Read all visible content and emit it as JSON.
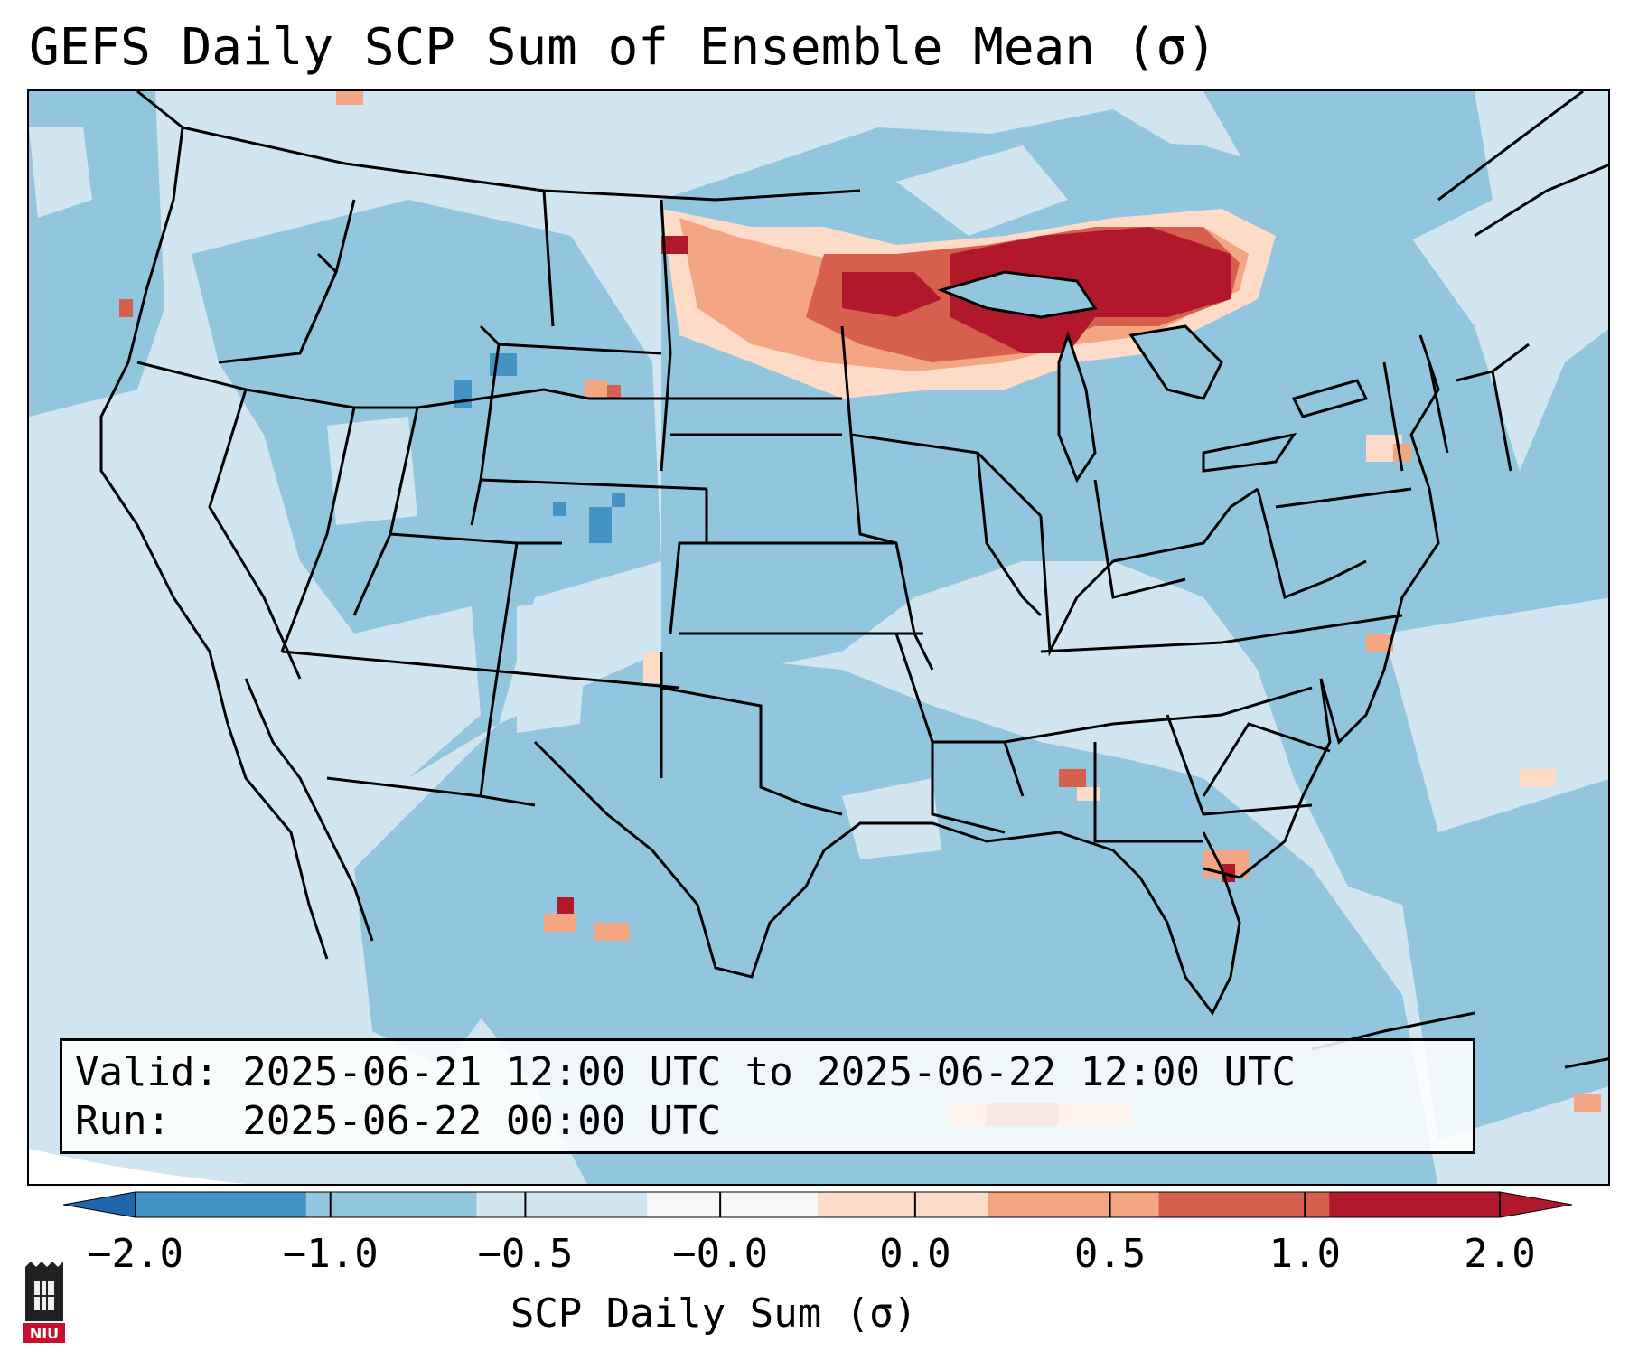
{
  "title": "GEFS Daily SCP Sum of Ensemble Mean (σ)",
  "info": {
    "valid": "Valid: 2025-06-21 12:00 UTC to 2025-06-22 12:00 UTC",
    "run": "Run:   2025-06-22 00:00 UTC"
  },
  "colorbar": {
    "label": "SCP Daily Sum (σ)",
    "ticks": [
      "−2.0",
      "−1.0",
      "−0.5",
      "−0.0",
      "0.0",
      "0.5",
      "1.0",
      "2.0"
    ],
    "colors": [
      "#4393c3",
      "#92c5de",
      "#d1e5f0",
      "#f7f7f7",
      "#fddbc7",
      "#f4a582",
      "#d6604d",
      "#b2182b"
    ],
    "extend_low": "#2166ac",
    "extend_high": "#b2182b"
  },
  "legend_colors": {
    "strong_positive": "#b2182b",
    "positive": "#d6604d",
    "weak_positive": "#f4a582",
    "slight_positive": "#fddbc7",
    "slight_negative": "#d1e5f0",
    "negative": "#92c5de",
    "strong_negative": "#4393c3"
  },
  "logo": {
    "text": "NIU",
    "color": "#c8102e"
  }
}
